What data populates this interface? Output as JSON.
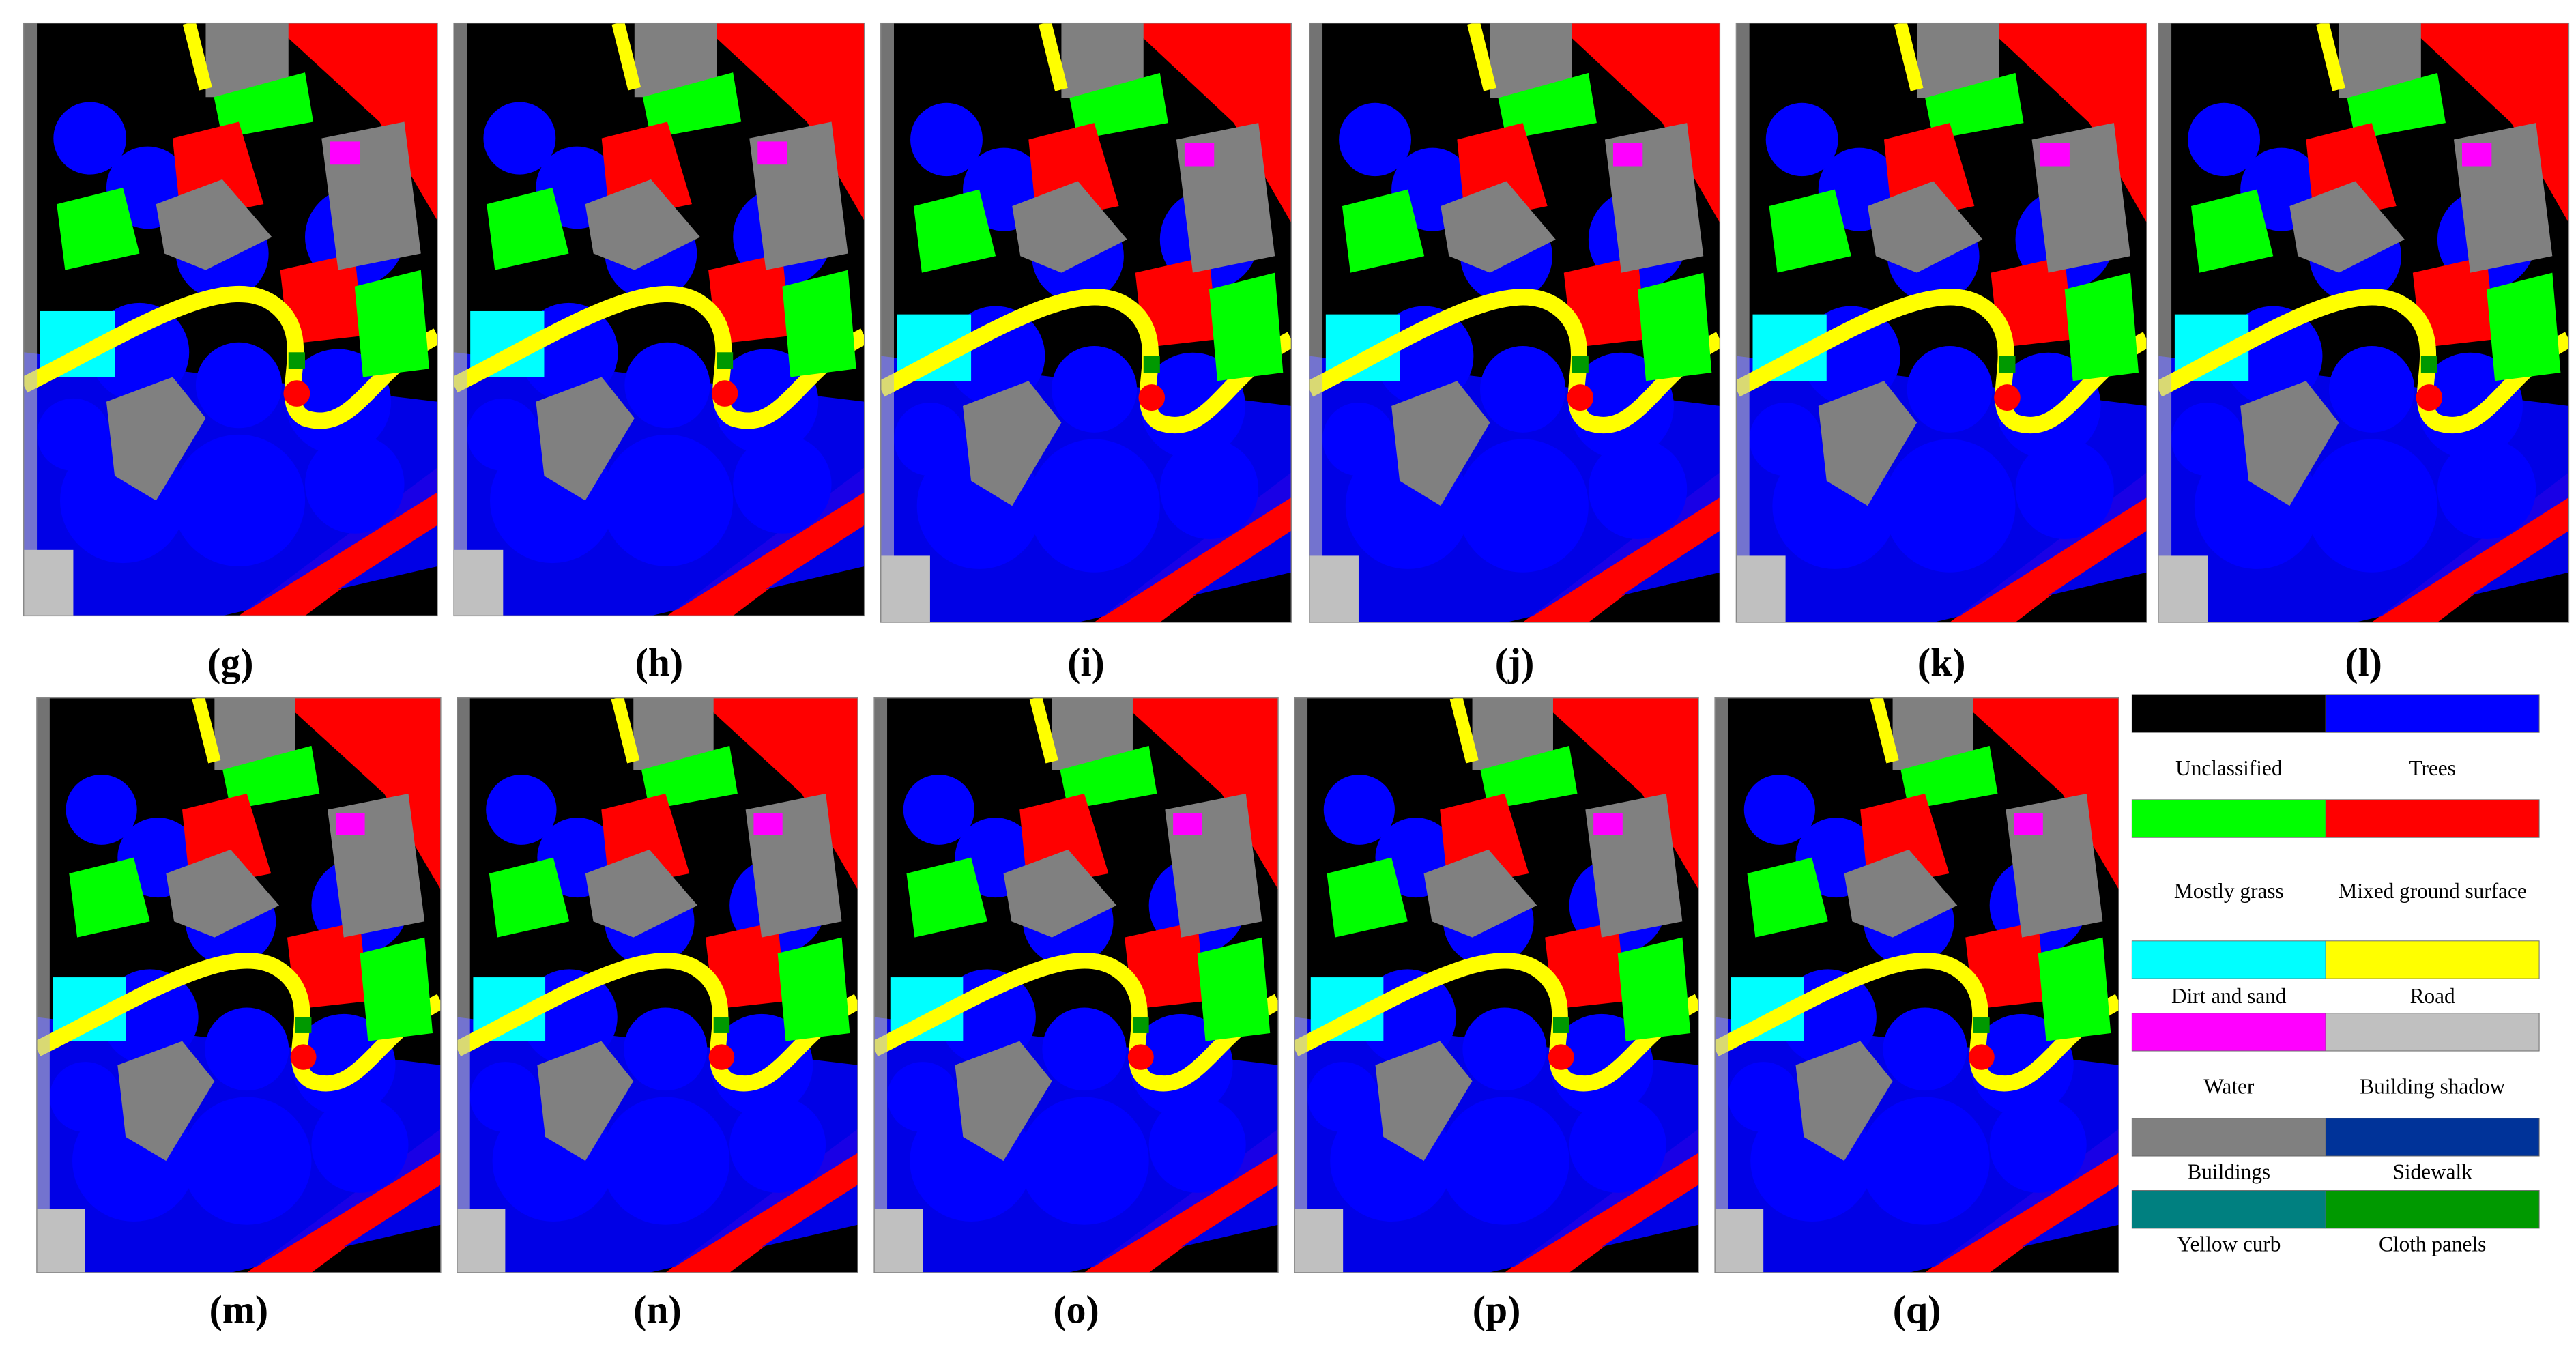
{
  "panels": [
    {
      "label": "(g)"
    },
    {
      "label": "(h)"
    },
    {
      "label": "(i)"
    },
    {
      "label": "(j)"
    },
    {
      "label": "(k)"
    },
    {
      "label": "(l)"
    },
    {
      "label": "(m)"
    },
    {
      "label": "(n)"
    },
    {
      "label": "(o)"
    },
    {
      "label": "(p)"
    },
    {
      "label": "(q)"
    }
  ],
  "legend": [
    {
      "name": "Unclassified",
      "color": "#000000"
    },
    {
      "name": "Trees",
      "color": "#0000ff"
    },
    {
      "name": "Mostly grass",
      "color": "#00ff00"
    },
    {
      "name": "Mixed ground surface",
      "color": "#ff0000"
    },
    {
      "name": "Dirt and sand",
      "color": "#00ffff"
    },
    {
      "name": "Road",
      "color": "#ffff00"
    },
    {
      "name": "Water",
      "color": "#ff00ff"
    },
    {
      "name": "Building shadow",
      "color": "#c0c0c0"
    },
    {
      "name": "Buildings",
      "color": "#808080"
    },
    {
      "name": "Sidewalk",
      "color": "#003399"
    },
    {
      "name": "Yellow curb",
      "color": "#008080"
    },
    {
      "name": "Cloth panels",
      "color": "#009900"
    }
  ]
}
